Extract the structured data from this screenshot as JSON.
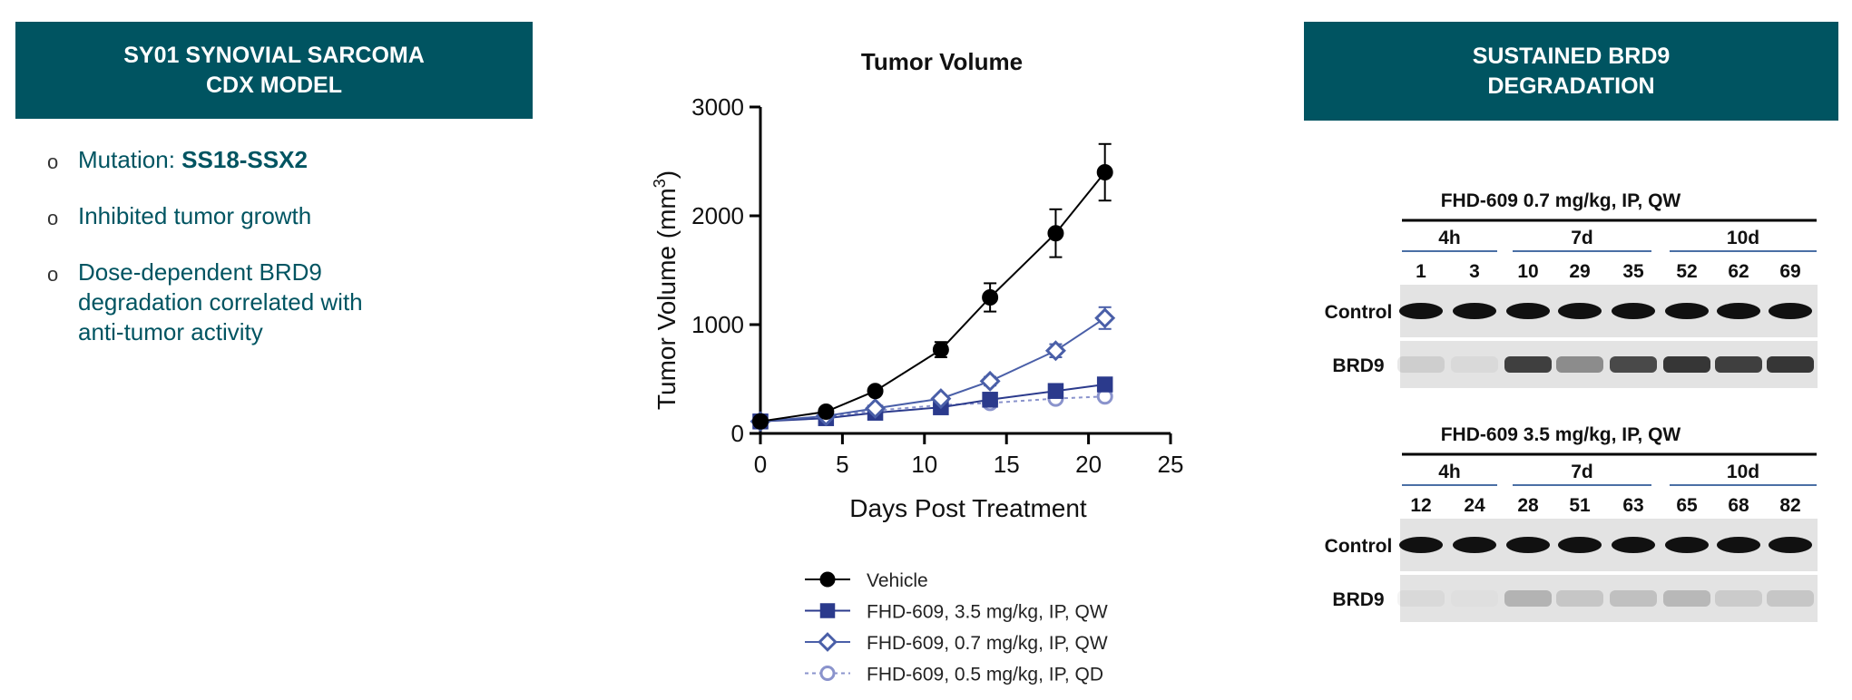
{
  "left_panel": {
    "banner_line1": "SY01 SYNOVIAL SARCOMA",
    "banner_line2": "CDX MODEL",
    "bullet_marker": "o",
    "bullets": [
      {
        "prefix": "Mutation: ",
        "bold": "SS18-SSX2"
      },
      {
        "lines": [
          "Inhibited tumor growth"
        ]
      },
      {
        "lines": [
          "Dose-dependent BRD9",
          "degradation correlated with",
          "anti-tumor activity"
        ]
      }
    ]
  },
  "right_panel": {
    "banner_line1": "SUSTAINED BRD9",
    "banner_line2": "DEGRADATION",
    "blots": [
      {
        "title": "FHD-609  0.7 mg/kg, IP, QW",
        "groups": [
          {
            "label": "4h",
            "samples": [
              "1",
              "3"
            ]
          },
          {
            "label": "7d",
            "samples": [
              "10",
              "29",
              "35"
            ]
          },
          {
            "label": "10d",
            "samples": [
              "52",
              "62",
              "69"
            ]
          }
        ],
        "rows": [
          "Control",
          "BRD9"
        ],
        "brd9_intensity": [
          0.1,
          0.05,
          0.85,
          0.45,
          0.8,
          0.9,
          0.85,
          0.9
        ]
      },
      {
        "title": "FHD-609  3.5 mg/kg, IP, QW",
        "groups": [
          {
            "label": "4h",
            "samples": [
              "12",
              "24"
            ]
          },
          {
            "label": "7d",
            "samples": [
              "28",
              "51",
              "63"
            ]
          },
          {
            "label": "10d",
            "samples": [
              "65",
              "68",
              "82"
            ]
          }
        ],
        "rows": [
          "Control",
          "BRD9"
        ],
        "brd9_intensity": [
          0.05,
          0.02,
          0.25,
          0.15,
          0.18,
          0.22,
          0.12,
          0.15
        ]
      }
    ]
  },
  "chart_data": {
    "type": "line",
    "title": "Tumor Volume",
    "xlabel": "Days Post Treatment",
    "ylabel": "Tumor Volume (mm",
    "ylabel_sup": "3",
    "ylabel_close": ")",
    "xlim": [
      0,
      25
    ],
    "ylim": [
      0,
      3000
    ],
    "xticks": [
      0,
      5,
      10,
      15,
      20,
      25
    ],
    "yticks": [
      0,
      1000,
      2000,
      3000
    ],
    "grid": false,
    "legend_position": "bottom",
    "colors": {
      "vehicle": "#000000",
      "dark": "#2b3a8c",
      "mid": "#4a5fa8",
      "light": "#8a93cc"
    },
    "series": [
      {
        "name": "Vehicle",
        "marker": "circle",
        "fill": "filled",
        "dash": false,
        "color": "#000000",
        "x": [
          0,
          4,
          7,
          11,
          14,
          18,
          21
        ],
        "y": [
          110,
          200,
          390,
          770,
          1250,
          1840,
          2400
        ],
        "err": [
          0,
          20,
          30,
          70,
          130,
          220,
          260
        ]
      },
      {
        "name": "FHD-609, 3.5 mg/kg, IP, QW",
        "marker": "square",
        "fill": "filled",
        "dash": false,
        "color": "#2b3a8c",
        "x": [
          0,
          4,
          7,
          11,
          14,
          18,
          21
        ],
        "y": [
          110,
          140,
          190,
          240,
          310,
          390,
          450
        ],
        "err": [
          0,
          10,
          15,
          20,
          25,
          30,
          35
        ]
      },
      {
        "name": "FHD-609, 0.7 mg/kg, IP, QW",
        "marker": "diamond",
        "fill": "open",
        "dash": false,
        "color": "#4a5fa8",
        "x": [
          0,
          4,
          7,
          11,
          14,
          18,
          21
        ],
        "y": [
          110,
          160,
          230,
          320,
          480,
          760,
          1060
        ],
        "err": [
          0,
          15,
          20,
          30,
          40,
          60,
          100
        ]
      },
      {
        "name": "FHD-609, 0.5 mg/kg, IP, QD",
        "marker": "circle",
        "fill": "open",
        "dash": true,
        "color": "#8a93cc",
        "x": [
          0,
          4,
          7,
          11,
          14,
          18,
          21
        ],
        "y": [
          110,
          150,
          210,
          260,
          280,
          320,
          340
        ],
        "err": [
          0,
          10,
          15,
          20,
          20,
          25,
          25
        ]
      }
    ]
  }
}
